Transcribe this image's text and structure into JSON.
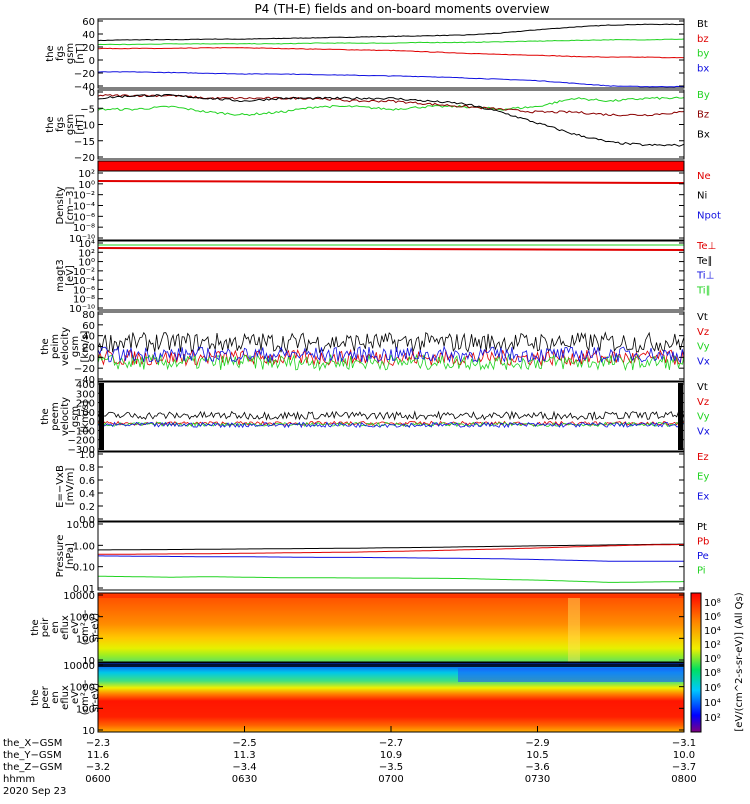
{
  "title": "P4 (TH-E) fields and on-board moments overview",
  "colors": {
    "black": "#000000",
    "red": "#e00000",
    "green": "#22d322",
    "blue": "#1010e0",
    "darkred": "#8b0000"
  },
  "chart_data": [
    {
      "type": "line",
      "ylabel": [
        "the",
        "fgs",
        "gsm",
        "[nT]"
      ],
      "yticks": [
        "60",
        "40",
        "20",
        "0",
        "−20",
        "−40"
      ],
      "ylim": [
        -40,
        63
      ],
      "series": [
        {
          "name": "Bt",
          "color": "#000000",
          "values": [
            31,
            32,
            32,
            33,
            33,
            34,
            35,
            36,
            37,
            38,
            39,
            42,
            47,
            51,
            54,
            55,
            55
          ]
        },
        {
          "name": "bz",
          "color": "#e00000",
          "values": [
            19,
            19,
            19,
            20,
            20,
            19,
            18,
            17,
            16,
            14,
            12,
            10,
            9,
            7,
            6,
            6,
            5
          ]
        },
        {
          "name": "by",
          "color": "#22d322",
          "values": [
            25,
            25,
            26,
            26,
            26,
            26,
            27,
            27,
            27,
            28,
            28,
            29,
            30,
            31,
            32,
            32,
            33
          ]
        },
        {
          "name": "bx",
          "color": "#1010e0",
          "values": [
            -16,
            -16,
            -17,
            -18,
            -19,
            -19,
            -20,
            -21,
            -22,
            -23,
            -25,
            -27,
            -29,
            -33,
            -37,
            -38,
            -38
          ]
        }
      ]
    },
    {
      "type": "line",
      "ylabel": [
        "the",
        "fgs",
        "gsm",
        "[nT]"
      ],
      "yticks": [
        "0",
        "−5",
        "−10",
        "−15",
        "−20"
      ],
      "ylim": [
        -23,
        2
      ],
      "series": [
        {
          "name": "By",
          "color": "#22d322",
          "values": [
            -5,
            -5,
            -4,
            -6,
            -7,
            -6,
            -4,
            -4,
            -5,
            -4,
            -4,
            -5,
            -4,
            -1,
            -2,
            -1,
            -1
          ]
        },
        {
          "name": "Bz",
          "color": "#8b0000",
          "values": [
            0,
            0,
            0,
            -1,
            -1,
            -1,
            -1,
            -2,
            -2,
            -3,
            -4,
            -5,
            -6,
            -6,
            -7,
            -7,
            -6
          ]
        },
        {
          "name": "Bx",
          "color": "#000000",
          "values": [
            -1,
            0,
            0,
            -1,
            -2,
            -1,
            -1,
            -1,
            -1,
            -2,
            -3,
            -6,
            -10,
            -14,
            -17,
            -18,
            -18
          ]
        }
      ]
    },
    {
      "type": "line",
      "ylabel": [
        "Density",
        "[cm−3]"
      ],
      "yticks": [
        "10²",
        "10⁰",
        "10⁻²",
        "10⁻⁴",
        "10⁻⁶",
        "10⁻⁸",
        "10⁻¹⁰"
      ],
      "series": [
        {
          "name": "Ne",
          "color": "#e00000"
        },
        {
          "name": "Ni",
          "color": "#000000"
        },
        {
          "name": "Npot",
          "color": "#1010e0"
        }
      ]
    },
    {
      "type": "line",
      "ylabel": [
        "magt3",
        "[eV]"
      ],
      "yticks": [
        "10⁴",
        "10²",
        "10⁰",
        "10⁻²",
        "10⁻⁴",
        "10⁻⁶",
        "10⁻⁸",
        "10⁻¹⁰"
      ],
      "series": [
        {
          "name": "Te⊥",
          "color": "#e00000"
        },
        {
          "name": "Te∥",
          "color": "#000000"
        },
        {
          "name": "Ti⊥",
          "color": "#1010e0"
        },
        {
          "name": "Ti∥",
          "color": "#22d322"
        }
      ]
    },
    {
      "type": "line",
      "ylabel": [
        "the",
        "peim",
        "velocity",
        "gsm",
        "[km/s]"
      ],
      "yticks": [
        "80",
        "60",
        "40",
        "20",
        "0",
        "−20",
        "−40"
      ],
      "ylim": [
        -40,
        85
      ],
      "series": [
        {
          "name": "Vt",
          "color": "#000000"
        },
        {
          "name": "Vz",
          "color": "#e00000"
        },
        {
          "name": "Vy",
          "color": "#22d322"
        },
        {
          "name": "Vx",
          "color": "#1010e0"
        }
      ]
    },
    {
      "type": "line",
      "ylabel": [
        "the",
        "peem",
        "velocity",
        "gsm",
        "[km/s]"
      ],
      "yticks": [
        "400",
        "300",
        "200",
        "100",
        "0",
        "−100",
        "−200",
        "−300"
      ],
      "ylim": [
        -300,
        400
      ],
      "series": [
        {
          "name": "Vt",
          "color": "#000000"
        },
        {
          "name": "Vz",
          "color": "#e00000"
        },
        {
          "name": "Vy",
          "color": "#22d322"
        },
        {
          "name": "Vx",
          "color": "#1010e0"
        }
      ]
    },
    {
      "type": "line",
      "ylabel": [
        "E=−VxB",
        "[mV/m]"
      ],
      "yticks": [
        "1.0",
        "0.8",
        "0.6",
        "0.4",
        "0.2",
        "0.0"
      ],
      "ylim": [
        0,
        1
      ],
      "series": [
        {
          "name": "Ez",
          "color": "#e00000"
        },
        {
          "name": "Ey",
          "color": "#22d322"
        },
        {
          "name": "Ex",
          "color": "#1010e0"
        }
      ]
    },
    {
      "type": "line",
      "log": true,
      "ylabel": [
        "Pressure",
        "[nPa]"
      ],
      "yticks": [
        "10.00",
        "1.00",
        "0.10",
        "0.01"
      ],
      "ylim": [
        0.01,
        12
      ],
      "series": [
        {
          "name": "Pt",
          "color": "#000000",
          "values": [
            0.65,
            0.67,
            0.68,
            0.7,
            0.72,
            0.74,
            0.76,
            0.78,
            0.82,
            0.85,
            0.9,
            0.95,
            1.0,
            1.05,
            1.1,
            1.15,
            1.2
          ]
        },
        {
          "name": "Pb",
          "color": "#e00000",
          "values": [
            0.42,
            0.42,
            0.43,
            0.44,
            0.46,
            0.48,
            0.5,
            0.52,
            0.56,
            0.6,
            0.66,
            0.72,
            0.8,
            0.9,
            1.0,
            1.1,
            1.15
          ]
        },
        {
          "name": "Pe",
          "color": "#1010e0",
          "values": [
            0.35,
            0.34,
            0.33,
            0.32,
            0.32,
            0.31,
            0.3,
            0.3,
            0.29,
            0.28,
            0.27,
            0.26,
            0.24,
            0.22,
            0.2,
            0.2,
            0.2
          ]
        },
        {
          "name": "Pi",
          "color": "#22d322",
          "values": [
            0.042,
            0.04,
            0.038,
            0.04,
            0.038,
            0.036,
            0.036,
            0.035,
            0.035,
            0.034,
            0.033,
            0.03,
            0.028,
            0.025,
            0.022,
            0.023,
            0.024
          ]
        }
      ]
    },
    {
      "type": "heatmap",
      "ylabel": [
        "the",
        "peir",
        "en",
        "eflux",
        "eV",
        "(cm²-s-",
        "sr-eV)"
      ],
      "yticks": [
        "10000",
        "1000",
        "100",
        "10"
      ]
    },
    {
      "type": "heatmap",
      "ylabel": [
        "the",
        "peer",
        "en",
        "eflux",
        "eV",
        "(cm²-s-",
        "sr-eV)"
      ],
      "yticks": [
        "10000",
        "1000",
        "100",
        "10"
      ]
    }
  ],
  "colorbar": {
    "label": "[eV/(cm^2-s-sr-eV)] (All Qs)",
    "top_ticks": [
      "10⁸",
      "10⁶",
      "10⁴",
      "10²",
      "10⁰"
    ],
    "bottom_ticks": [
      "10⁸",
      "10⁶",
      "10⁴",
      "10²"
    ]
  },
  "x_axis": {
    "rows": [
      {
        "label": "the_X−GSM",
        "values": [
          "−2.3",
          "−2.5",
          "−2.7",
          "−2.9",
          "−3.1"
        ]
      },
      {
        "label": "the_Y−GSM",
        "values": [
          "11.6",
          "11.3",
          "10.9",
          "10.5",
          "10.0"
        ]
      },
      {
        "label": "the_Z−GSM",
        "values": [
          "−3.2",
          "−3.4",
          "−3.5",
          "−3.6",
          "−3.7"
        ]
      },
      {
        "label": "hhmm",
        "values": [
          "0600",
          "0630",
          "0700",
          "0730",
          "0800"
        ]
      }
    ],
    "date": "2020 Sep 23"
  }
}
